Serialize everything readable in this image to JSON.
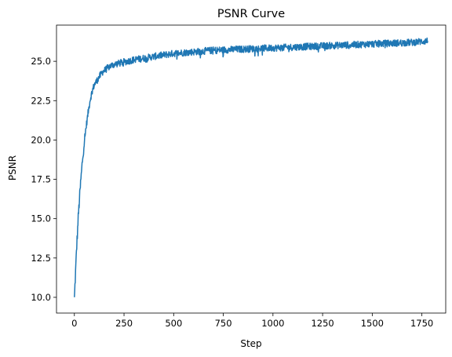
{
  "chart_data": {
    "type": "line",
    "title": "PSNR Curve",
    "xlabel": "Step",
    "ylabel": "PSNR",
    "xlim": [
      -90,
      1870
    ],
    "ylim": [
      9.0,
      27.3
    ],
    "xticks": [
      0,
      250,
      500,
      750,
      1000,
      1250,
      1500,
      1750
    ],
    "yticks": [
      10.0,
      12.5,
      15.0,
      17.5,
      20.0,
      22.5,
      25.0
    ],
    "grid": false,
    "legend": "none",
    "series": [
      {
        "color": "#1f77b4",
        "x": [
          0,
          5,
          10,
          20,
          30,
          40,
          50,
          60,
          70,
          80,
          90,
          100,
          120,
          140,
          160,
          180,
          200,
          250,
          300,
          350,
          400,
          450,
          500,
          600,
          700,
          800,
          900,
          1000,
          1100,
          1200,
          1300,
          1400,
          1500,
          1600,
          1700,
          1780
        ],
        "y": [
          9.9,
          11.3,
          12.8,
          15.2,
          17.0,
          18.6,
          19.9,
          20.9,
          21.8,
          22.6,
          23.1,
          23.5,
          23.9,
          24.3,
          24.5,
          24.7,
          24.8,
          24.95,
          25.1,
          25.2,
          25.3,
          25.4,
          25.5,
          25.6,
          25.7,
          25.75,
          25.8,
          25.85,
          25.9,
          25.95,
          26.0,
          26.05,
          26.1,
          26.15,
          26.2,
          26.3
        ]
      }
    ]
  }
}
